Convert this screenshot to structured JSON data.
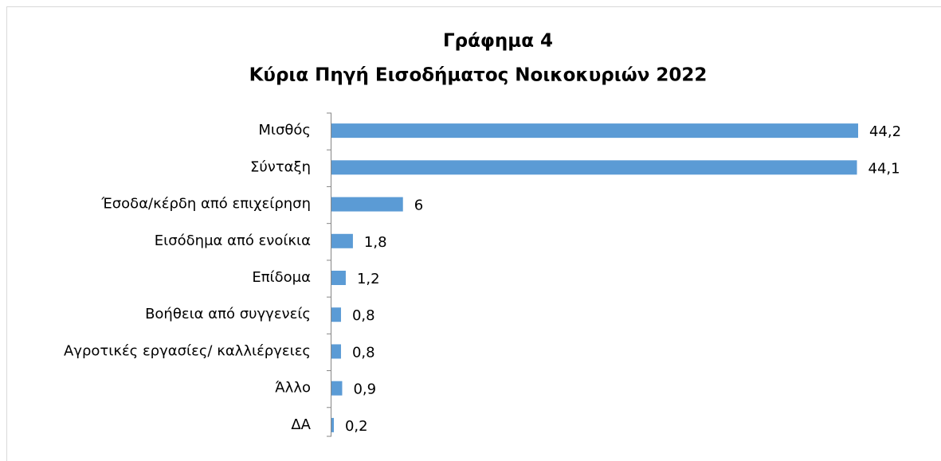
{
  "chart_data": {
    "type": "bar",
    "orientation": "horizontal",
    "title": "Γράφημα 4",
    "subtitle": "Κύρια Πηγή Εισοδήματος Νοικοκυριών 2022",
    "categories": [
      "Μισθός",
      "Σύνταξη",
      "Έσοδα/κέρδη από επιχείρηση",
      "Εισόδημα από ενοίκια",
      "Επίδομα",
      "Βοήθεια από συγγενείς",
      "Αγροτικές εργασίες/ καλλιέργειες",
      "Άλλο",
      "ΔΑ"
    ],
    "values": [
      44.2,
      44.1,
      6,
      1.8,
      1.2,
      0.8,
      0.8,
      0.9,
      0.2
    ],
    "value_labels": [
      "44,2",
      "44,1",
      "6",
      "1,8",
      "1,2",
      "0,8",
      "0,8",
      "0,9",
      "0,2"
    ],
    "color": "#5b9bd5"
  }
}
